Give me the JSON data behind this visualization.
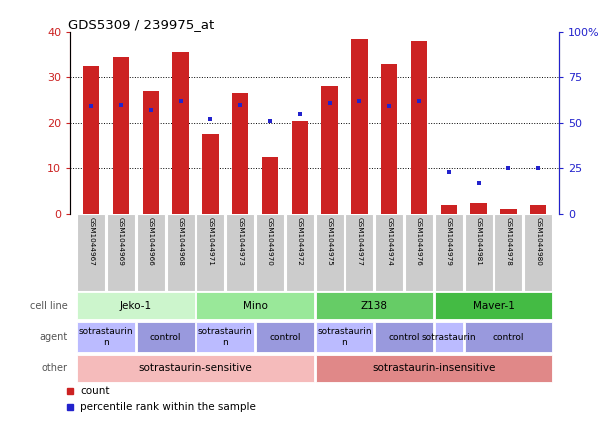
{
  "title": "GDS5309 / 239975_at",
  "samples": [
    "GSM1044967",
    "GSM1044969",
    "GSM1044966",
    "GSM1044968",
    "GSM1044971",
    "GSM1044973",
    "GSM1044970",
    "GSM1044972",
    "GSM1044975",
    "GSM1044977",
    "GSM1044974",
    "GSM1044976",
    "GSM1044979",
    "GSM1044981",
    "GSM1044978",
    "GSM1044980"
  ],
  "bar_values": [
    32.5,
    34.5,
    27.0,
    35.5,
    17.5,
    26.5,
    12.5,
    20.5,
    28.0,
    38.5,
    33.0,
    38.0,
    2.0,
    2.5,
    1.0,
    2.0
  ],
  "dot_values": [
    59,
    60,
    57,
    62,
    52,
    60,
    51,
    55,
    61,
    62,
    59,
    62,
    23,
    17,
    25,
    25
  ],
  "bar_color": "#cc2222",
  "dot_color": "#2222cc",
  "ylim_left": [
    0,
    40
  ],
  "ylim_right": [
    0,
    100
  ],
  "yticks_left": [
    0,
    10,
    20,
    30,
    40
  ],
  "yticks_right": [
    0,
    25,
    50,
    75,
    100
  ],
  "ytick_labels_left": [
    "0",
    "10",
    "20",
    "30",
    "40"
  ],
  "ytick_labels_right": [
    "0",
    "25",
    "50",
    "75",
    "100%"
  ],
  "cell_line_groups": [
    {
      "label": "Jeko-1",
      "start": 0,
      "end": 4,
      "color": "#ccf5cc"
    },
    {
      "label": "Mino",
      "start": 4,
      "end": 8,
      "color": "#99e899"
    },
    {
      "label": "Z138",
      "start": 8,
      "end": 12,
      "color": "#66cc66"
    },
    {
      "label": "Maver-1",
      "start": 12,
      "end": 16,
      "color": "#44bb44"
    }
  ],
  "agent_groups": [
    {
      "label": "sotrastaurin\nn",
      "start": 0,
      "end": 2,
      "color": "#bbbbff"
    },
    {
      "label": "control",
      "start": 2,
      "end": 4,
      "color": "#9999dd"
    },
    {
      "label": "sotrastaurin\nn",
      "start": 4,
      "end": 6,
      "color": "#bbbbff"
    },
    {
      "label": "control",
      "start": 6,
      "end": 8,
      "color": "#9999dd"
    },
    {
      "label": "sotrastaurin\nn",
      "start": 8,
      "end": 10,
      "color": "#bbbbff"
    },
    {
      "label": "control",
      "start": 10,
      "end": 12,
      "color": "#9999dd"
    },
    {
      "label": "sotrastaurin",
      "start": 12,
      "end": 13,
      "color": "#bbbbff"
    },
    {
      "label": "control",
      "start": 13,
      "end": 16,
      "color": "#9999dd"
    }
  ],
  "other_groups": [
    {
      "label": "sotrastaurin-sensitive",
      "start": 0,
      "end": 8,
      "color": "#f5bbbb"
    },
    {
      "label": "sotrastaurin-insensitive",
      "start": 8,
      "end": 16,
      "color": "#e08888"
    }
  ],
  "row_labels": [
    "cell line",
    "agent",
    "other"
  ],
  "n": 16,
  "bar_width": 0.55,
  "xlim": [
    -0.7,
    15.7
  ],
  "bg_color": "white",
  "grid_color": "black",
  "sample_box_color": "#cccccc",
  "sample_text_color": "black"
}
